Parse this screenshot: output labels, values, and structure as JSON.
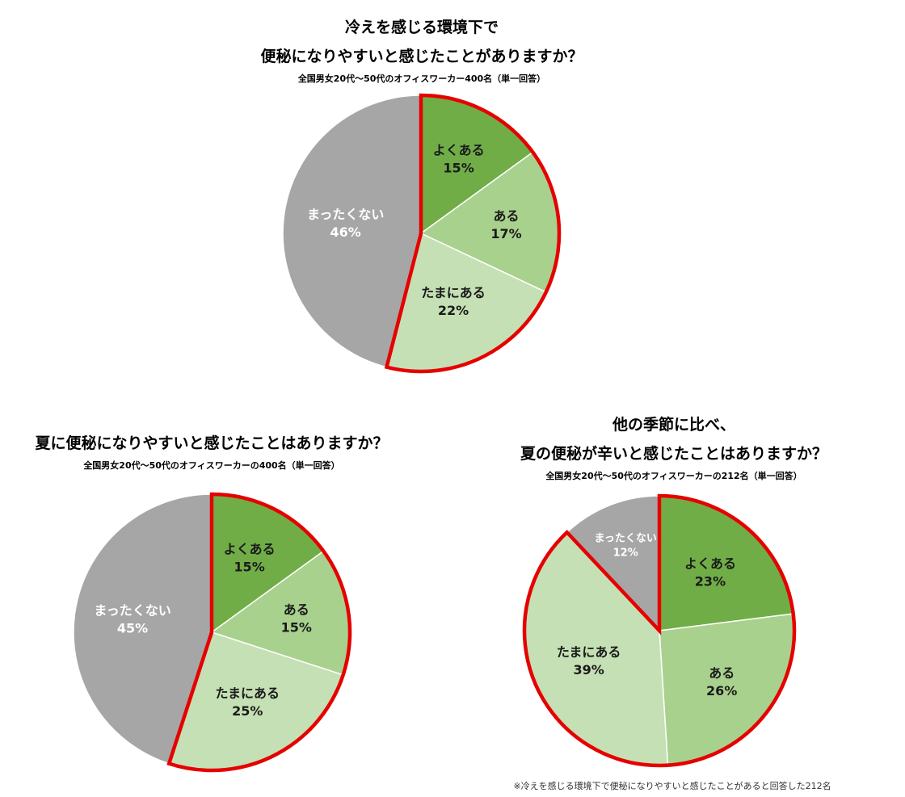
{
  "colors": {
    "yoku_aru": "#70ad47",
    "aru": "#a9d18e",
    "tamani_aru": "#c5e0b4",
    "mattaku_nai": "#a6a6a6",
    "highlight_outline": "#e60000",
    "label_dark": "#1a1a1a",
    "label_light": "#ffffff"
  },
  "footnote": "※冷えを感じる環境下で便秘になりやすいと感じたことがあると回答した212名",
  "chart_data": [
    {
      "type": "pie",
      "title_lines": [
        "冷えを感じる環境下で",
        "便秘になりやすいと感じたことがありますか？"
      ],
      "subtitle": "全国男女20代～50代のオフィスワーカー400名（単一回答）",
      "slices": [
        {
          "label": "よくある",
          "value": 15,
          "value_label": "15%",
          "color_key": "yoku_aru",
          "highlight": true
        },
        {
          "label": "ある",
          "value": 17,
          "value_label": "17%",
          "color_key": "aru",
          "highlight": true
        },
        {
          "label": "たまにある",
          "value": 22,
          "value_label": "22%",
          "color_key": "tamani_aru",
          "highlight": true
        },
        {
          "label": "まったくない",
          "value": 46,
          "value_label": "46%",
          "color_key": "mattaku_nai",
          "highlight": false
        }
      ]
    },
    {
      "type": "pie",
      "title_lines": [
        "夏に便秘になりやすいと感じたことはありますか？"
      ],
      "subtitle": "全国男女20代～50代のオフィスワーカーの400名（単一回答）",
      "slices": [
        {
          "label": "よくある",
          "value": 15,
          "value_label": "15%",
          "color_key": "yoku_aru",
          "highlight": true
        },
        {
          "label": "ある",
          "value": 15,
          "value_label": "15%",
          "color_key": "aru",
          "highlight": true
        },
        {
          "label": "たまにある",
          "value": 25,
          "value_label": "25%",
          "color_key": "tamani_aru",
          "highlight": true
        },
        {
          "label": "まったくない",
          "value": 45,
          "value_label": "45%",
          "color_key": "mattaku_nai",
          "highlight": false
        }
      ]
    },
    {
      "type": "pie",
      "title_lines": [
        "他の季節に比べ、",
        "夏の便秘が辛いと感じたことはありますか？"
      ],
      "subtitle": "全国男女20代～50代のオフィスワーカーの212名（単一回答）",
      "slices": [
        {
          "label": "よくある",
          "value": 23,
          "value_label": "23%",
          "color_key": "yoku_aru",
          "highlight": true
        },
        {
          "label": "ある",
          "value": 26,
          "value_label": "26%",
          "color_key": "aru",
          "highlight": true
        },
        {
          "label": "たまにある",
          "value": 39,
          "value_label": "39%",
          "color_key": "tamani_aru",
          "highlight": true
        },
        {
          "label": "まったくない",
          "value": 12,
          "value_label": "12%",
          "color_key": "mattaku_nai",
          "highlight": false
        }
      ]
    }
  ]
}
